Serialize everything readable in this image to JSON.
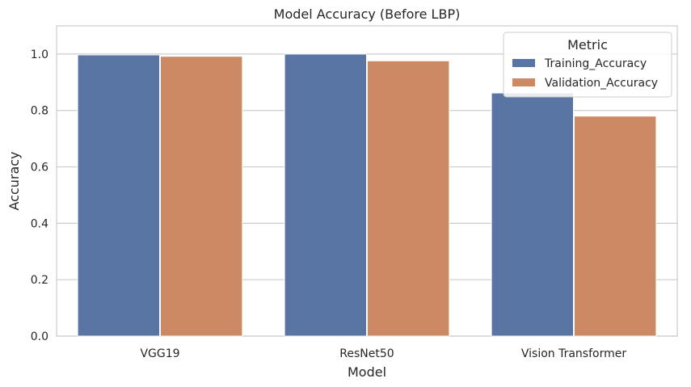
{
  "chart_data": {
    "type": "bar",
    "title": "Model Accuracy (Before LBP)",
    "xlabel": "Model",
    "ylabel": "Accuracy",
    "categories": [
      "VGG19",
      "ResNet50",
      "Vision Transformer"
    ],
    "series": [
      {
        "name": "Training_Accuracy",
        "values": [
          0.997,
          1.0,
          0.862
        ],
        "color": "#5875a4"
      },
      {
        "name": "Validation_Accuracy",
        "values": [
          0.992,
          0.976,
          0.78
        ],
        "color": "#cc8963"
      }
    ],
    "ylim": [
      0,
      1.1
    ],
    "yticks": [
      "0.0",
      "0.2",
      "0.4",
      "0.6",
      "0.8",
      "1.0"
    ],
    "grid": true,
    "legend": {
      "title": "Metric",
      "position": "top-right"
    }
  }
}
